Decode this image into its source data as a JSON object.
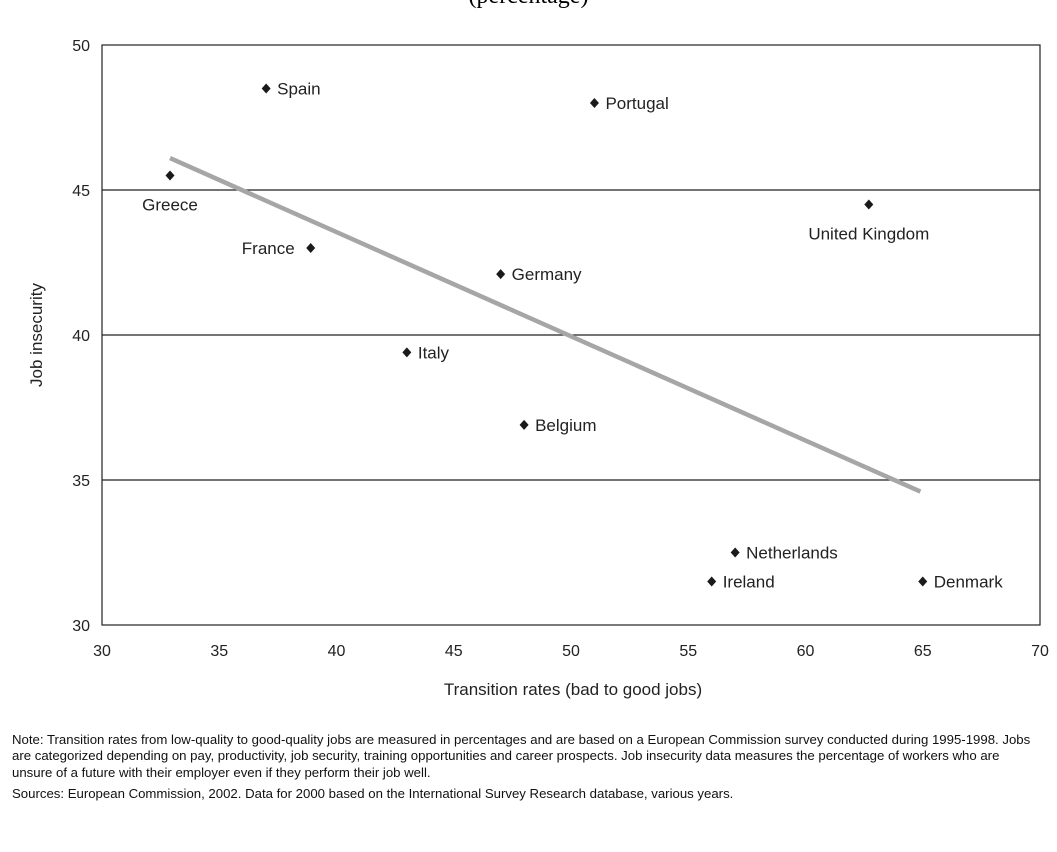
{
  "header_fragment": "(percentage)",
  "chart_data": {
    "type": "scatter",
    "title": "",
    "xlabel": "Transition rates (bad to good jobs)",
    "ylabel": "Job insecurity",
    "xlim": [
      30,
      70
    ],
    "ylim": [
      30,
      50
    ],
    "x_ticks": [
      30,
      35,
      40,
      45,
      50,
      55,
      60,
      65,
      70
    ],
    "y_ticks": [
      30,
      35,
      40,
      45,
      50
    ],
    "grid": "horizontal",
    "marker_color": "#1a1a1a",
    "trendline_color": "#a6a6a6",
    "points": [
      {
        "label": "Spain",
        "x": 37,
        "y": 48.5,
        "label_pos": "right"
      },
      {
        "label": "Portugal",
        "x": 51,
        "y": 48,
        "label_pos": "right"
      },
      {
        "label": "Greece",
        "x": 32.9,
        "y": 45.5,
        "label_pos": "below"
      },
      {
        "label": "United Kingdom",
        "x": 62.7,
        "y": 44.5,
        "label_pos": "below"
      },
      {
        "label": "France",
        "x": 38.9,
        "y": 43,
        "label_pos": "left"
      },
      {
        "label": "Germany",
        "x": 47,
        "y": 42.1,
        "label_pos": "right"
      },
      {
        "label": "Italy",
        "x": 43,
        "y": 39.4,
        "label_pos": "right"
      },
      {
        "label": "Belgium",
        "x": 48,
        "y": 36.9,
        "label_pos": "right"
      },
      {
        "label": "Netherlands",
        "x": 57,
        "y": 32.5,
        "label_pos": "right"
      },
      {
        "label": "Ireland",
        "x": 56,
        "y": 31.5,
        "label_pos": "right"
      },
      {
        "label": "Denmark",
        "x": 65,
        "y": 31.5,
        "label_pos": "right"
      }
    ],
    "trendline": {
      "x": [
        32.9,
        64.9
      ],
      "y": [
        46.1,
        34.6
      ]
    }
  },
  "note": "Note: Transition rates from low-quality to good-quality jobs are measured in percentages and are based on a European Commission survey conducted during 1995-1998. Jobs are categorized depending on pay, productivity, job security, training opportunities and career prospects. Job insecurity data measures the percentage of workers who are unsure of a future with their employer even if they perform their job well.",
  "sources": "Sources: European Commission, 2002. Data for 2000 based on the International Survey Research database, various years."
}
